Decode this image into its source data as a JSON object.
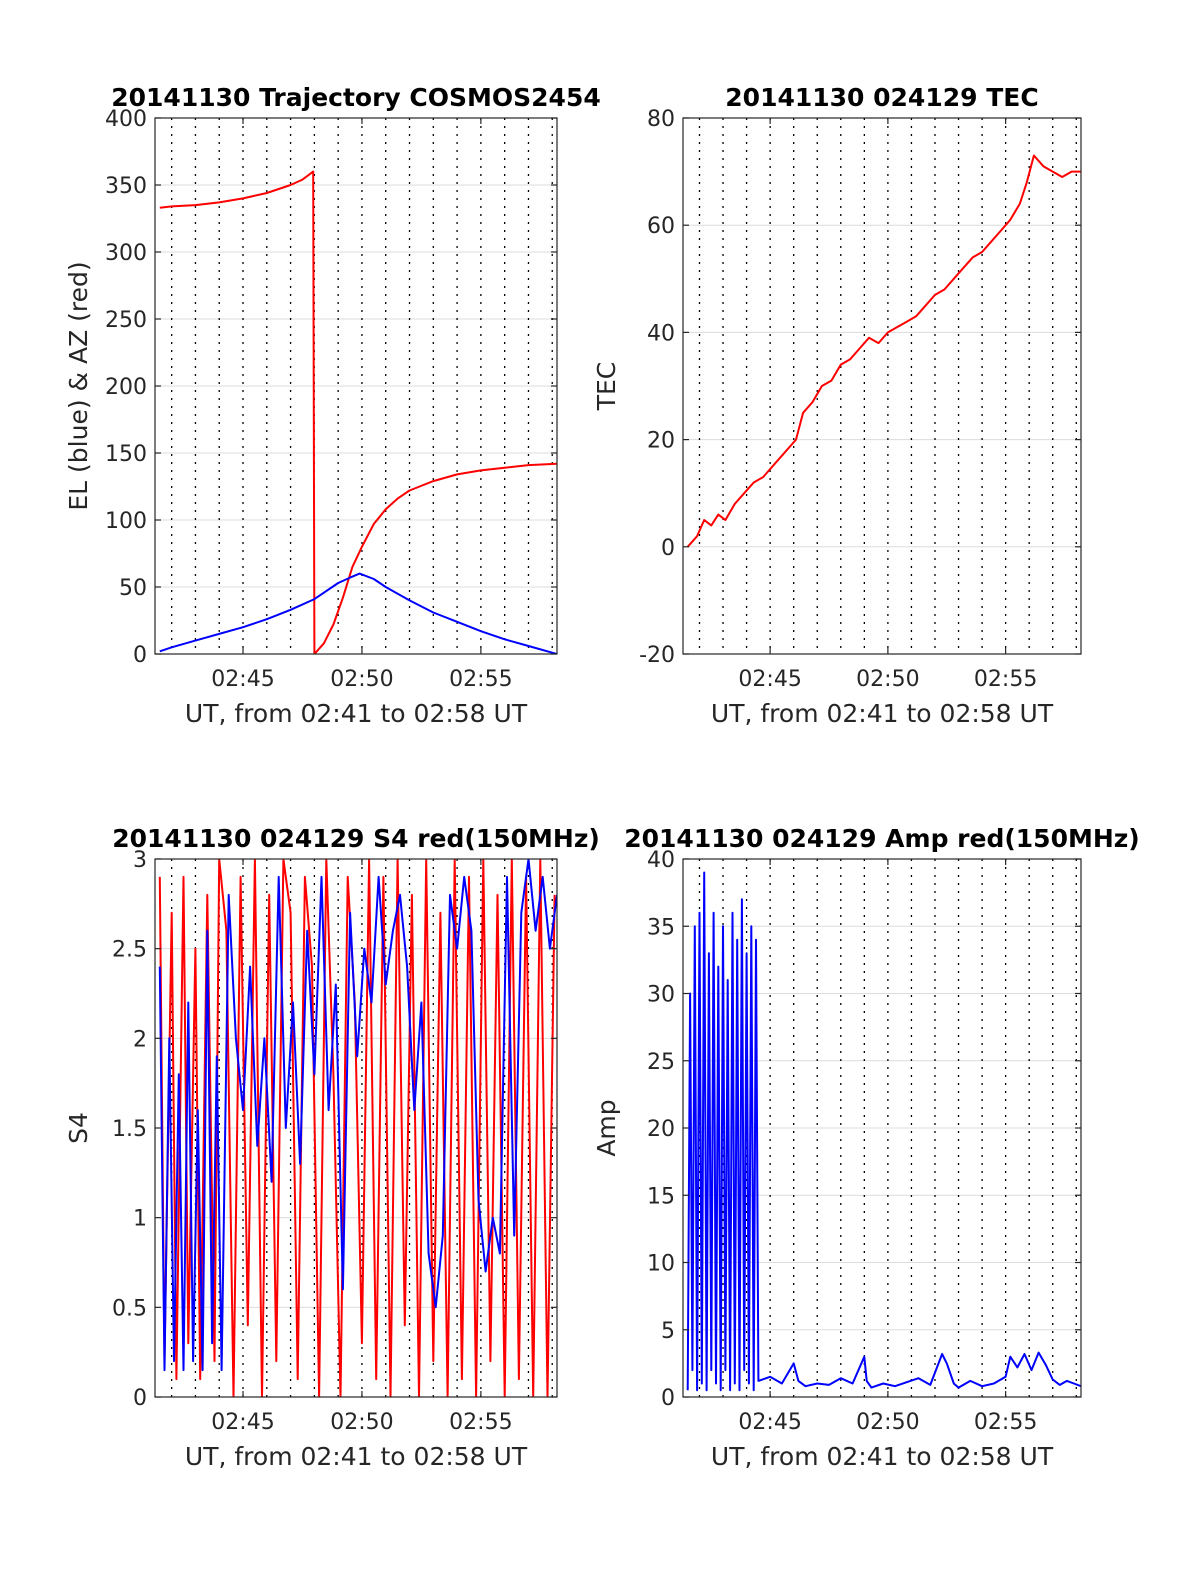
{
  "figure": {
    "background": "#ffffff"
  },
  "chart_data": [
    {
      "type": "line",
      "title": "20141130 Trajectory COSMOS2454",
      "xlabel": "UT, from 02:41 to 02:58 UT",
      "ylabel": "EL (blue) & AZ (red)",
      "x_unit": "minutes after 02:00 UT",
      "xlim": [
        41.3,
        58.2
      ],
      "ylim": [
        0,
        400
      ],
      "yticks": [
        0,
        50,
        100,
        150,
        200,
        250,
        300,
        350,
        400
      ],
      "xtick_labels": [
        "02:45",
        "02:50",
        "02:55"
      ],
      "xtick_values": [
        45,
        50,
        55
      ],
      "x_dotted_grid": [
        42,
        43,
        44,
        45,
        46,
        47,
        48,
        49,
        50,
        51,
        52,
        53,
        54,
        55,
        56,
        57,
        58
      ],
      "grid": true,
      "series": [
        {
          "color": "#ff0000",
          "x": [
            41.5,
            42,
            43,
            44,
            45,
            46,
            46.5,
            47,
            47.5,
            47.95,
            48.0,
            48.4,
            48.8,
            49.2,
            49.6,
            50.0,
            50.5,
            51,
            51.5,
            52,
            53,
            54,
            55,
            56,
            57,
            58.2
          ],
          "y": [
            333,
            334,
            335,
            337,
            340,
            344,
            347,
            350,
            354,
            360,
            0,
            8,
            22,
            42,
            65,
            80,
            97,
            108,
            116,
            122,
            129,
            134,
            137,
            139,
            141,
            142
          ]
        },
        {
          "color": "#0000ff",
          "x": [
            41.5,
            42,
            43,
            44,
            45,
            46,
            47,
            48,
            49,
            49.5,
            49.9,
            50.5,
            51,
            52,
            53,
            54,
            55,
            56,
            57,
            58.2
          ],
          "y": [
            2,
            5,
            10,
            15,
            20,
            26,
            33,
            41,
            53,
            57,
            60,
            56,
            50,
            40,
            31,
            24,
            17,
            11,
            6,
            0
          ]
        }
      ]
    },
    {
      "type": "line",
      "title": "20141130 024129 TEC",
      "xlabel": "UT, from 02:41 to 02:58 UT",
      "ylabel": "TEC",
      "x_unit": "minutes after 02:00 UT",
      "xlim": [
        41.3,
        58.2
      ],
      "ylim": [
        -20,
        80
      ],
      "yticks": [
        -20,
        0,
        20,
        40,
        60,
        80
      ],
      "xtick_labels": [
        "02:45",
        "02:50",
        "02:55"
      ],
      "xtick_values": [
        45,
        50,
        55
      ],
      "x_dotted_grid": [
        42,
        43,
        44,
        45,
        46,
        47,
        48,
        49,
        50,
        51,
        52,
        53,
        54,
        55,
        56,
        57,
        58
      ],
      "grid": true,
      "series": [
        {
          "color": "#ff0000",
          "x": [
            41.5,
            41.9,
            42.2,
            42.5,
            42.8,
            43.1,
            43.5,
            43.9,
            44.3,
            44.7,
            45.1,
            45.5,
            45.9,
            46.1,
            46.4,
            46.8,
            47.2,
            47.6,
            48.0,
            48.4,
            48.8,
            49.2,
            49.6,
            50.0,
            50.4,
            50.8,
            51.2,
            51.6,
            52.0,
            52.4,
            52.8,
            53.2,
            53.6,
            54.0,
            54.4,
            54.8,
            55.2,
            55.6,
            55.9,
            56.2,
            56.6,
            57.0,
            57.4,
            57.8,
            58.2
          ],
          "y": [
            0,
            2,
            5,
            4,
            6,
            5,
            8,
            10,
            12,
            13,
            15,
            17,
            19,
            20,
            25,
            27,
            30,
            31,
            34,
            35,
            37,
            39,
            38,
            40,
            41,
            42,
            43,
            45,
            47,
            48,
            50,
            52,
            54,
            55,
            57,
            59,
            61,
            64,
            68,
            73,
            71,
            70,
            69,
            70,
            70
          ]
        }
      ]
    },
    {
      "type": "line",
      "title": "20141130 024129 S4 red(150MHz)",
      "xlabel": "UT, from 02:41 to 02:58 UT",
      "ylabel": "S4",
      "x_unit": "minutes after 02:00 UT",
      "xlim": [
        41.3,
        58.2
      ],
      "ylim": [
        0,
        3
      ],
      "yticks": [
        0,
        0.5,
        1,
        1.5,
        2,
        2.5,
        3
      ],
      "xtick_labels": [
        "02:45",
        "02:50",
        "02:55"
      ],
      "xtick_values": [
        45,
        50,
        55
      ],
      "x_dotted_grid": [
        42,
        43,
        44,
        45,
        46,
        47,
        48,
        49,
        50,
        51,
        52,
        53,
        54,
        55,
        56,
        57,
        58
      ],
      "grid": true,
      "series": [
        {
          "color": "#ff0000",
          "x": [
            41.5,
            41.7,
            42.0,
            42.2,
            42.5,
            42.7,
            43.0,
            43.2,
            43.5,
            43.8,
            44.0,
            44.3,
            44.6,
            44.9,
            45.2,
            45.5,
            45.8,
            46.1,
            46.4,
            46.7,
            47.0,
            47.3,
            47.6,
            47.9,
            48.2,
            48.5,
            48.8,
            49.1,
            49.4,
            49.7,
            50.0,
            50.3,
            50.6,
            50.9,
            51.2,
            51.5,
            51.8,
            52.1,
            52.4,
            52.7,
            53.0,
            53.3,
            53.6,
            53.9,
            54.2,
            54.5,
            54.8,
            55.1,
            55.4,
            55.7,
            56.0,
            56.3,
            56.6,
            56.9,
            57.2,
            57.5,
            57.8,
            58.1
          ],
          "y": [
            2.9,
            0.2,
            2.7,
            0.1,
            2.9,
            0.3,
            2.5,
            0.1,
            2.8,
            0.2,
            3.0,
            2.6,
            0.0,
            2.9,
            0.4,
            3.0,
            0.0,
            2.8,
            0.2,
            3.0,
            2.7,
            0.1,
            2.9,
            2.4,
            0.0,
            3.0,
            1.8,
            0.0,
            2.9,
            2.2,
            0.3,
            3.0,
            0.1,
            2.9,
            0.0,
            3.0,
            0.4,
            2.8,
            0.0,
            3.0,
            0.2,
            2.7,
            0.0,
            3.0,
            0.1,
            2.9,
            0.0,
            3.0,
            0.2,
            2.8,
            0.0,
            3.0,
            0.1,
            2.9,
            0.0,
            3.0,
            0.0,
            2.8
          ]
        },
        {
          "color": "#0000ff",
          "x": [
            41.5,
            41.7,
            41.9,
            42.1,
            42.3,
            42.5,
            42.7,
            42.9,
            43.1,
            43.3,
            43.5,
            43.7,
            43.9,
            44.1,
            44.4,
            44.7,
            45.0,
            45.3,
            45.6,
            45.9,
            46.2,
            46.5,
            46.8,
            47.1,
            47.4,
            47.7,
            48.0,
            48.3,
            48.6,
            48.9,
            49.2,
            49.5,
            49.8,
            50.1,
            50.4,
            50.7,
            51.0,
            51.3,
            51.6,
            51.9,
            52.2,
            52.5,
            52.8,
            53.1,
            53.4,
            53.7,
            54.0,
            54.3,
            54.6,
            54.9,
            55.2,
            55.5,
            55.8,
            56.1,
            56.4,
            56.7,
            57.0,
            57.3,
            57.6,
            57.9,
            58.2
          ],
          "y": [
            2.4,
            0.15,
            2.0,
            0.2,
            1.8,
            0.15,
            2.2,
            0.2,
            1.6,
            0.15,
            2.6,
            0.3,
            1.9,
            0.15,
            2.8,
            2.0,
            1.6,
            2.4,
            1.4,
            2.0,
            1.2,
            2.9,
            1.5,
            2.2,
            1.3,
            2.6,
            1.8,
            2.9,
            1.6,
            2.3,
            0.6,
            2.7,
            1.9,
            2.5,
            2.2,
            2.9,
            2.3,
            2.6,
            2.8,
            2.4,
            1.6,
            2.2,
            0.8,
            0.5,
            0.9,
            2.8,
            2.5,
            2.9,
            2.6,
            1.1,
            0.7,
            1.0,
            0.8,
            2.9,
            0.9,
            2.7,
            3.0,
            2.6,
            2.9,
            2.5,
            2.8
          ]
        }
      ]
    },
    {
      "type": "line",
      "title": "20141130 024129 Amp red(150MHz)",
      "xlabel": "UT, from 02:41 to 02:58 UT",
      "ylabel": "Amp",
      "x_unit": "minutes after 02:00 UT",
      "xlim": [
        41.3,
        58.2
      ],
      "ylim": [
        0,
        40
      ],
      "yticks": [
        0,
        5,
        10,
        15,
        20,
        25,
        30,
        35,
        40
      ],
      "xtick_labels": [
        "02:45",
        "02:50",
        "02:55"
      ],
      "xtick_values": [
        45,
        50,
        55
      ],
      "x_dotted_grid": [
        42,
        43,
        44,
        45,
        46,
        47,
        48,
        49,
        50,
        51,
        52,
        53,
        54,
        55,
        56,
        57,
        58
      ],
      "grid": true,
      "series": [
        {
          "color": "#0000ff",
          "x": [
            41.5,
            41.6,
            41.7,
            41.8,
            41.9,
            42.0,
            42.1,
            42.2,
            42.3,
            42.4,
            42.5,
            42.6,
            42.7,
            42.8,
            42.9,
            43.0,
            43.1,
            43.2,
            43.3,
            43.4,
            43.5,
            43.6,
            43.7,
            43.8,
            43.9,
            44.0,
            44.1,
            44.2,
            44.3,
            44.4,
            44.5,
            45.0,
            45.5,
            46.0,
            46.2,
            46.5,
            47.0,
            47.5,
            48.0,
            48.5,
            49.0,
            49.1,
            49.3,
            49.8,
            50.3,
            50.8,
            51.3,
            51.8,
            52.3,
            52.5,
            52.8,
            53.0,
            53.5,
            54.0,
            54.5,
            55.0,
            55.2,
            55.5,
            55.8,
            56.1,
            56.4,
            56.7,
            57.0,
            57.3,
            57.6,
            57.9,
            58.2
          ],
          "y": [
            0.5,
            30,
            2,
            35,
            0.5,
            36,
            1,
            39,
            0.5,
            33,
            2,
            36,
            1,
            32,
            0.5,
            35,
            2,
            31,
            0.5,
            36,
            1,
            34,
            0.5,
            37,
            2,
            33,
            1,
            35,
            0.5,
            34,
            1.2,
            1.5,
            1.0,
            2.5,
            1.2,
            0.8,
            1.0,
            0.9,
            1.4,
            1.0,
            3.0,
            1.2,
            0.7,
            1.0,
            0.8,
            1.1,
            1.4,
            0.9,
            3.2,
            2.5,
            1.0,
            0.7,
            1.2,
            0.8,
            1.0,
            1.5,
            3.0,
            2.2,
            3.2,
            2.0,
            3.3,
            2.4,
            1.3,
            0.9,
            1.2,
            1.0,
            0.8
          ]
        }
      ]
    }
  ]
}
